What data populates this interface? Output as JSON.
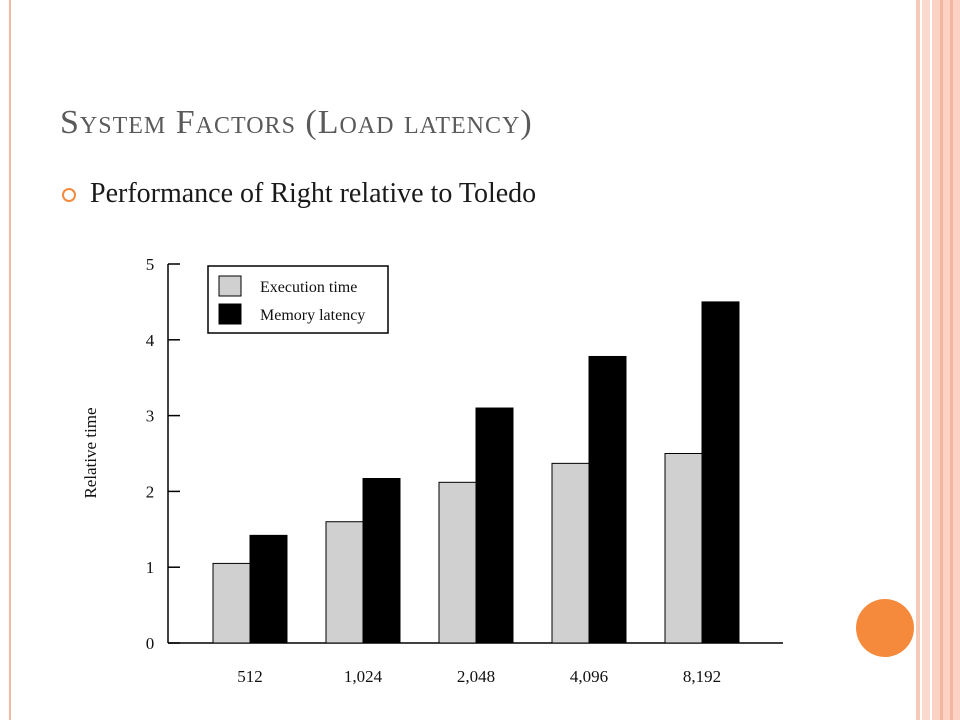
{
  "slide": {
    "title": "System Factors (Load latency)",
    "bullet": "Performance of Right relative to Toledo"
  },
  "colors": {
    "accent": "#f58a3d",
    "execution_fill": "#d0d0d0",
    "memory_fill": "#000000"
  },
  "chart_data": {
    "type": "bar",
    "title": "",
    "xlabel": "",
    "ylabel": "Relative time",
    "categories": [
      "512",
      "1,024",
      "2,048",
      "4,096",
      "8,192"
    ],
    "series": [
      {
        "name": "Execution time",
        "values": [
          1.05,
          1.6,
          2.12,
          2.37,
          2.5
        ]
      },
      {
        "name": "Memory latency",
        "values": [
          1.42,
          2.17,
          3.1,
          3.78,
          4.5
        ]
      }
    ],
    "ylim": [
      0,
      5
    ],
    "yticks": [
      "0",
      "1",
      "2",
      "3",
      "4",
      "5"
    ],
    "legend_position": "top-left",
    "grid": false
  }
}
